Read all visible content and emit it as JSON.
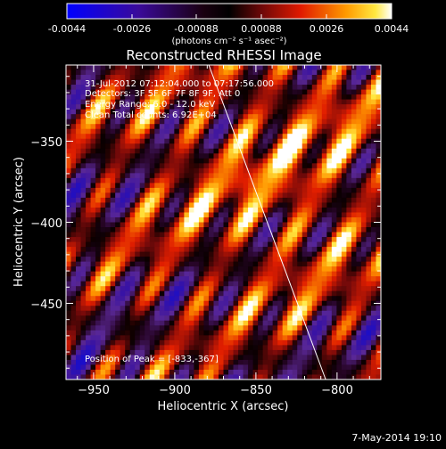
{
  "colorbar": {
    "tick_labels": [
      "-0.0044",
      "-0.0026",
      "-0.00088",
      "0.00088",
      "0.0026",
      "0.0044"
    ],
    "unit_label": "(photons cm⁻² s⁻¹ asec⁻²)",
    "range": [
      -0.0044,
      0.0044
    ]
  },
  "title": "Reconstructed RHESSI Image",
  "info": {
    "line1": "31-Jul-2012 07:12:04.000 to 07:17:56.000",
    "line2": "Detectors: 3F 5F 6F 7F 8F 9F, Att 0",
    "line3": "Energy Range: 6.0 - 12.0 keV",
    "line4": "Clean     Total counts: 6.92E+04"
  },
  "peak_label": "Position of Peak = [-833,-367]",
  "footer": {
    "date": "7-May-2014 19:10"
  },
  "chart_data": {
    "type": "heatmap",
    "title": "Reconstructed RHESSI Image",
    "xlabel": "Heliocentric X (arcsec)",
    "ylabel": "Heliocentric Y (arcsec)",
    "xlim": [
      -967,
      -773
    ],
    "ylim": [
      -497,
      -303
    ],
    "x_ticks": [
      -950,
      -900,
      -850,
      -800
    ],
    "y_ticks": [
      -450,
      -400,
      -350
    ],
    "x_tick_labels": [
      "−950",
      "−900",
      "−850",
      "−800"
    ],
    "y_tick_labels": [
      "−450",
      "−400",
      "−350"
    ],
    "limb_line": [
      [
        -879,
        -303
      ],
      [
        -807,
        -497
      ]
    ],
    "peak": [
      -833,
      -367
    ],
    "colormap": "RHESSI blue-purple-red-orange-yellow-white"
  }
}
